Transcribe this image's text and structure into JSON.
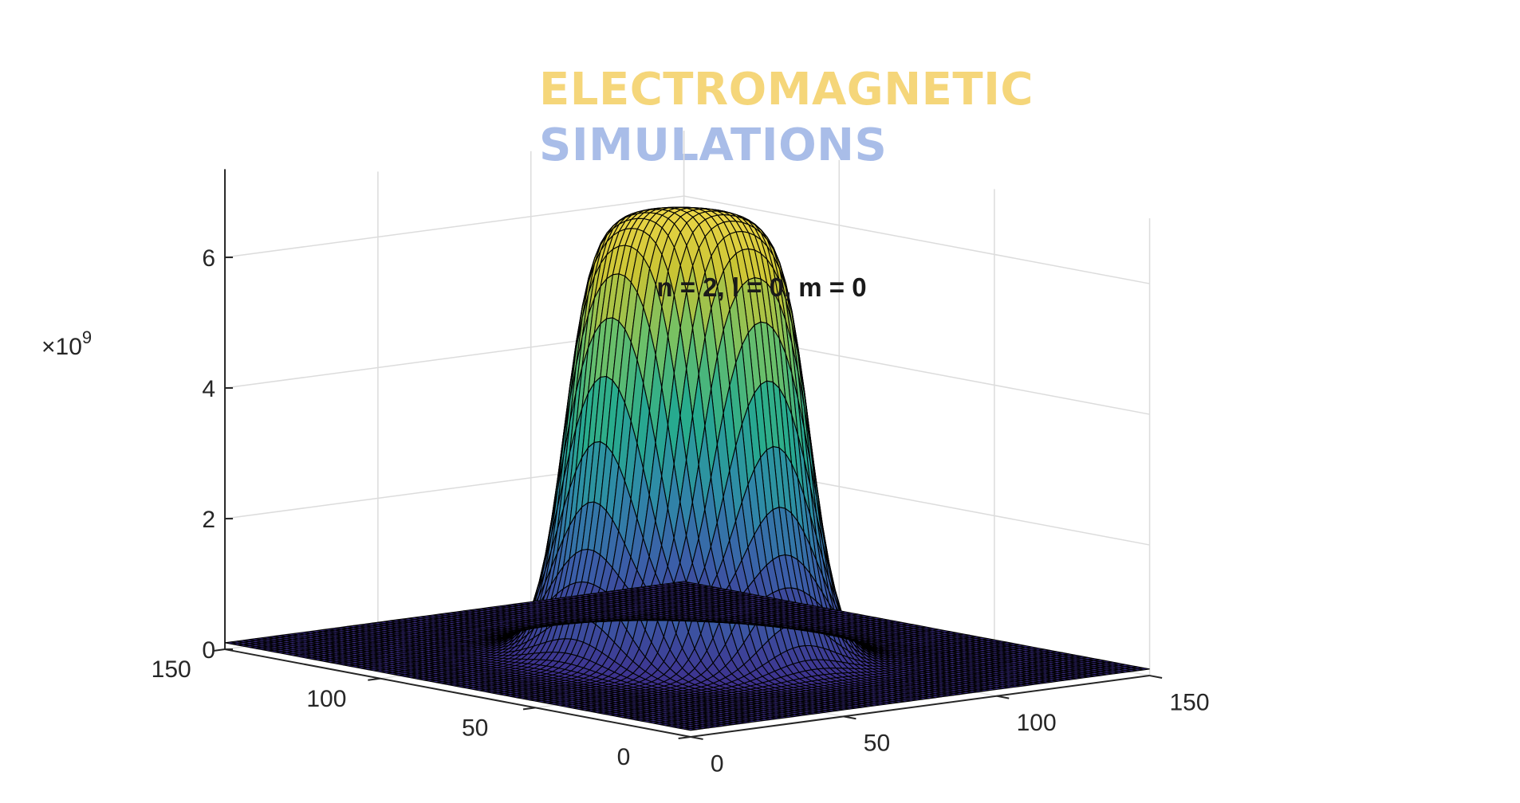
{
  "header": {
    "line1": "ELECTROMAGNETIC",
    "line2": "SIMULATIONS"
  },
  "colors": {
    "line1": "#f5d67a",
    "line2": "#a9bde8",
    "colormap": [
      "#3e2a8a",
      "#3b5ea8",
      "#2f8aa8",
      "#27ab8e",
      "#6cc06a",
      "#c9c434",
      "#f2d94a"
    ]
  },
  "chart_data": {
    "type": "surface",
    "title": "n = 2, l = 0, m = 0",
    "x_ticks": [
      "0",
      "50",
      "100",
      "150"
    ],
    "y_ticks": [
      "0",
      "50",
      "100",
      "150"
    ],
    "z_ticks": [
      "0",
      "2",
      "4",
      "6"
    ],
    "z_exponent_label": "×10",
    "z_exponent": "9",
    "xlim": [
      0,
      150
    ],
    "ylim": [
      0,
      150
    ],
    "zlim": [
      0,
      7
    ],
    "grid": true,
    "surface": {
      "center": [
        75,
        75
      ],
      "peak_value": 6.9,
      "plateau_radius": 28,
      "falloff_width": 14,
      "base_value": 0.1
    }
  }
}
